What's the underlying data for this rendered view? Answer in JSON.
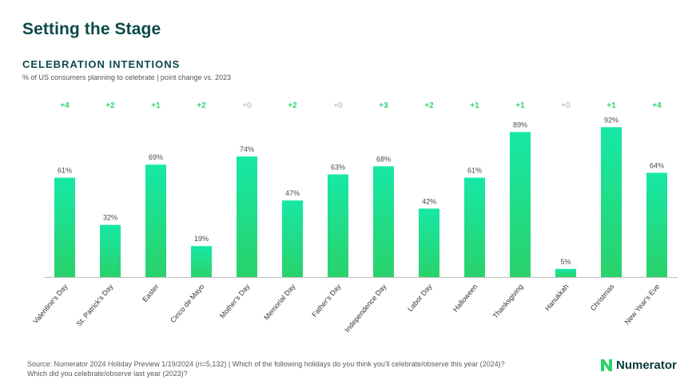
{
  "header": {
    "title": "Setting the Stage",
    "section": "CELEBRATION INTENTIONS",
    "subtitle": "% of US consumers planning to celebrate | point change vs. 2023"
  },
  "chart_data": {
    "type": "bar",
    "categories": [
      "Valentine's Day",
      "St. Patrick's Day",
      "Easter",
      "Cinco de Mayo",
      "Mother's Day",
      "Memorial Day",
      "Father's Day",
      "Independence Day",
      "Labor Day",
      "Halloween",
      "Thanksgiving",
      "Hanukkah",
      "Christmas",
      "New Year's Eve"
    ],
    "values": [
      61,
      32,
      69,
      19,
      74,
      47,
      63,
      68,
      42,
      61,
      89,
      5,
      92,
      64
    ],
    "value_labels": [
      "61%",
      "32%",
      "69%",
      "19%",
      "74%",
      "47%",
      "63%",
      "68%",
      "42%",
      "61%",
      "89%",
      "5%",
      "92%",
      "64%"
    ],
    "point_change_labels": [
      "+4",
      "+2",
      "+1",
      "+2",
      "+0",
      "+2",
      "+0",
      "+3",
      "+2",
      "+1",
      "+1",
      "+0",
      "+1",
      "+4"
    ],
    "ylim": [
      0,
      100
    ],
    "xlabel": "",
    "ylabel": "",
    "grid": false,
    "colors": {
      "bar_top": "#16e8a6",
      "bar_bottom": "#2ad26a",
      "change_positive": "#2fd36f",
      "change_zero": "#a9b0b2",
      "value_label": "#4a4a4a",
      "axis": "#bfbfbf"
    }
  },
  "footer": {
    "source_line1": "Source: Numerator 2024 Holiday Preview 1/19/2024 (n=5,132) | Which of the following holidays do you think you'll celebrate/observe this year (2024)?",
    "source_line2": "Which did you celebrate/observe last year (2023)?"
  },
  "logo": {
    "name": "Numerator",
    "icon": "numerator-n-logo",
    "color": "#2ad26a"
  }
}
